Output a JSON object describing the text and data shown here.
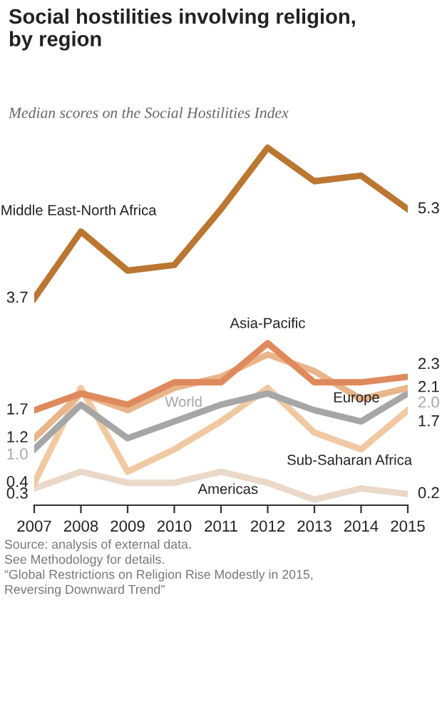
{
  "chart_data": {
    "type": "line",
    "title": "Social hostilities involving religion,\nby region",
    "subtitle": "Median scores on the Social Hostilities Index",
    "categories": [
      "2007",
      "2008",
      "2009",
      "2010",
      "2011",
      "2012",
      "2013",
      "2014",
      "2015"
    ],
    "series": [
      {
        "name": "Middle East-North Africa",
        "color": "#bb7631",
        "values": [
          3.7,
          4.9,
          4.2,
          4.3,
          5.3,
          6.4,
          5.8,
          5.9,
          5.3
        ],
        "value_labels": [
          "3.7",
          null,
          null,
          null,
          null,
          null,
          null,
          null,
          "5.3"
        ]
      },
      {
        "name": "Asia-Pacific",
        "color": "#df8a5c",
        "values": [
          1.7,
          2.0,
          1.8,
          2.2,
          2.2,
          2.9,
          2.2,
          2.2,
          2.3
        ],
        "value_labels": [
          "1.7",
          null,
          null,
          null,
          null,
          null,
          null,
          null,
          "2.3"
        ]
      },
      {
        "name": "Europe",
        "color": "#e9b58a",
        "values": [
          1.2,
          2.0,
          1.7,
          2.1,
          2.3,
          2.7,
          2.4,
          1.9,
          2.1
        ],
        "value_labels": [
          "1.2",
          null,
          null,
          null,
          null,
          null,
          null,
          null,
          "2.1"
        ]
      },
      {
        "name": "World",
        "color": "#a6a6a6",
        "values": [
          1.0,
          1.8,
          1.2,
          1.5,
          1.8,
          2.0,
          1.7,
          1.5,
          2.0
        ],
        "value_labels": [
          "1.0",
          null,
          null,
          null,
          null,
          null,
          null,
          null,
          "2.0"
        ]
      },
      {
        "name": "Sub-Saharan Africa",
        "color": "#f0c9a3",
        "values": [
          0.4,
          2.1,
          0.6,
          1.0,
          1.5,
          2.1,
          1.3,
          1.0,
          1.7
        ],
        "value_labels": [
          "0.4",
          null,
          null,
          null,
          null,
          null,
          null,
          null,
          "1.7"
        ]
      },
      {
        "name": "Americas",
        "color": "#ead8c8",
        "values": [
          0.3,
          0.6,
          0.4,
          0.4,
          0.6,
          0.4,
          0.1,
          0.3,
          0.2
        ],
        "value_labels": [
          "0.3",
          null,
          null,
          null,
          null,
          null,
          null,
          null,
          "0.2"
        ]
      }
    ],
    "annotations": [
      "Source: analysis of external data.\nSee Methodology for details.\n“Global Restrictions on Religion Rise Modestly in 2015,\nReversing Downward Trend”"
    ],
    "grid": false,
    "legend": false,
    "marker": "none",
    "line_style": "solid"
  }
}
